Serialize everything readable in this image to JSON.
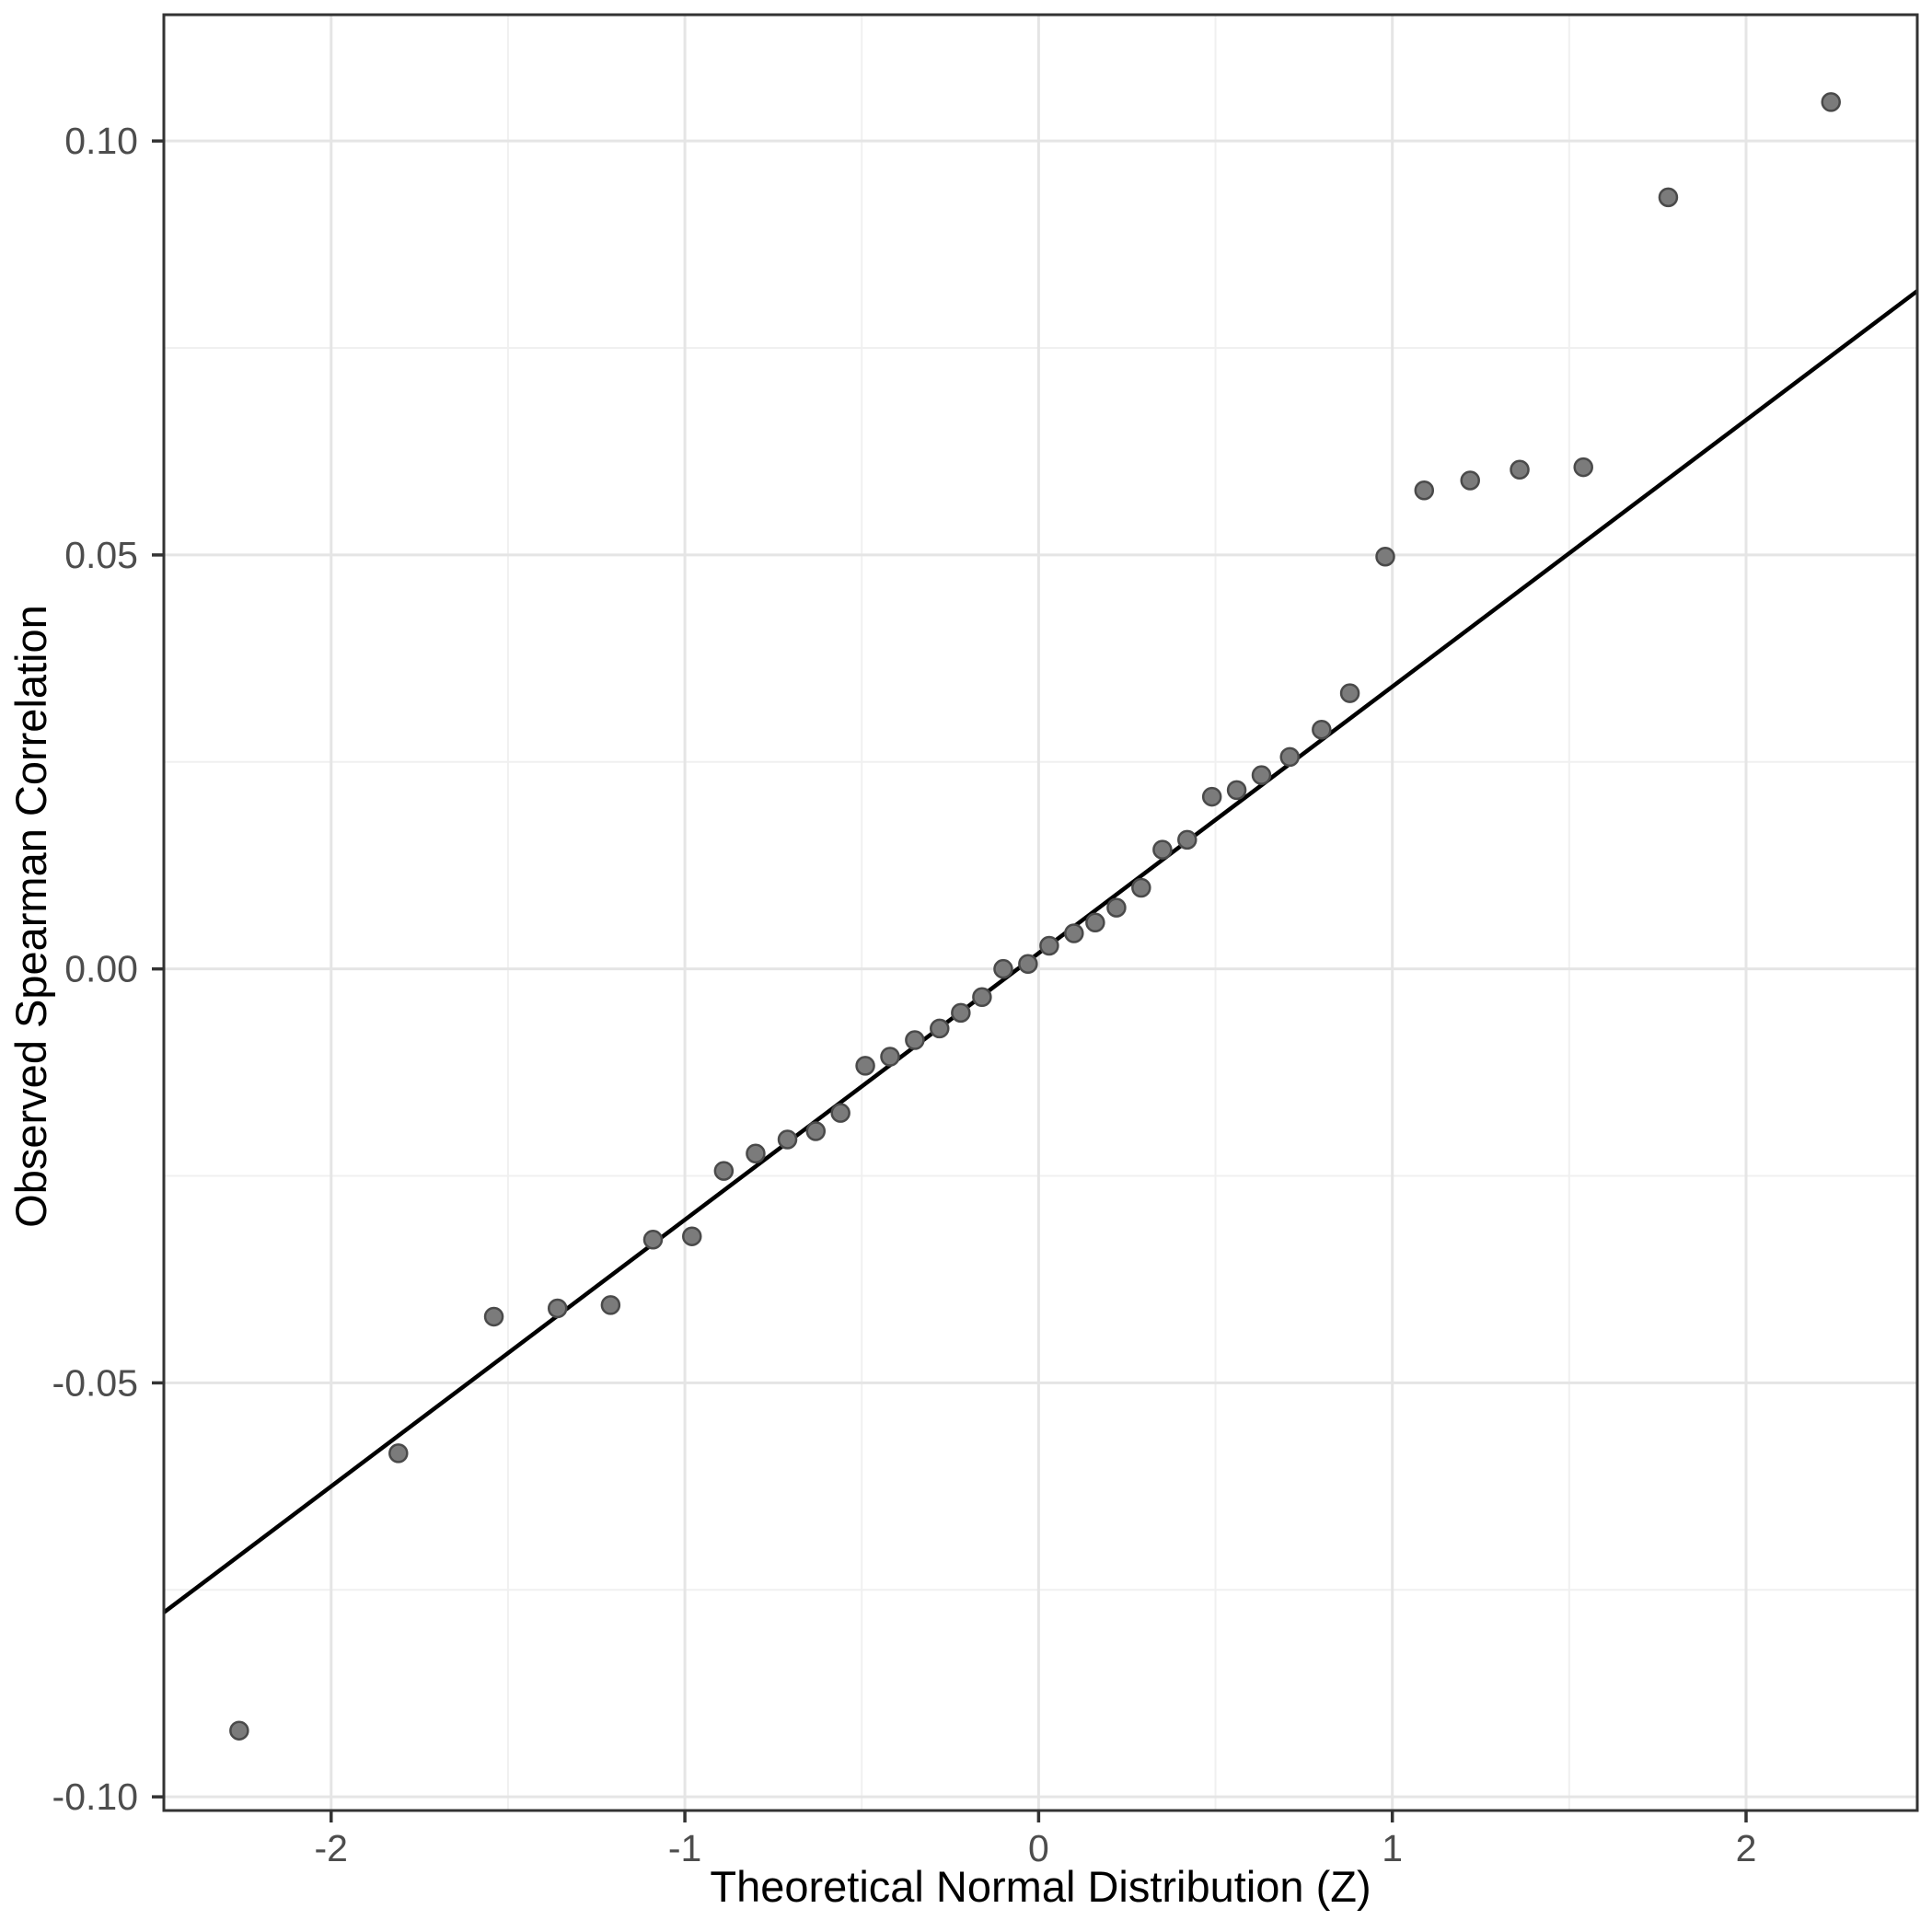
{
  "chart_data": {
    "type": "scatter",
    "title": "",
    "xlabel": "Theoretical Normal Distribution (Z)",
    "ylabel": "Observed Spearman Correlation",
    "x_axis": {
      "tick_values": [
        -2,
        -1,
        0,
        1,
        2
      ],
      "tick_labels": [
        "-2",
        "-1",
        "0",
        "1",
        "2"
      ],
      "minor_breaks": [
        -1.5,
        -0.5,
        0.5,
        1.5
      ],
      "limits": [
        -2.473,
        2.484
      ]
    },
    "y_axis": {
      "tick_values": [
        0.1,
        0.05,
        0.0,
        -0.05,
        -0.1
      ],
      "tick_labels": [
        "0.10",
        "0.05",
        "0.00",
        "-0.05",
        "-0.10"
      ],
      "minor_breaks": [
        0.075,
        0.025,
        -0.025,
        -0.075
      ],
      "limits": [
        -0.10165,
        0.11525
      ]
    },
    "grid": "major-and-minor",
    "legend_position": "none",
    "points": [
      [
        -2.26,
        -0.092
      ],
      [
        -1.81,
        -0.0585
      ],
      [
        -1.54,
        -0.042
      ],
      [
        -1.36,
        -0.041
      ],
      [
        -1.21,
        -0.0406
      ],
      [
        -1.09,
        -0.0327
      ],
      [
        -0.98,
        -0.0323
      ],
      [
        -0.89,
        -0.0244
      ],
      [
        -0.8,
        -0.0223
      ],
      [
        -0.71,
        -0.0206
      ],
      [
        -0.63,
        -0.0196
      ],
      [
        -0.56,
        -0.0174
      ],
      [
        -0.49,
        -0.0117
      ],
      [
        -0.42,
        -0.0106
      ],
      [
        -0.35,
        -0.0086
      ],
      [
        -0.28,
        -0.0072
      ],
      [
        -0.22,
        -0.0053
      ],
      [
        -0.16,
        -0.0034
      ],
      [
        -0.1,
        0.0
      ],
      [
        -0.03,
        0.0006
      ],
      [
        0.03,
        0.0028
      ],
      [
        0.1,
        0.0043
      ],
      [
        0.16,
        0.0056
      ],
      [
        0.22,
        0.0074
      ],
      [
        0.29,
        0.0098
      ],
      [
        0.35,
        0.0144
      ],
      [
        0.42,
        0.0156
      ],
      [
        0.49,
        0.0208
      ],
      [
        0.56,
        0.0216
      ],
      [
        0.63,
        0.0234
      ],
      [
        0.71,
        0.0256
      ],
      [
        0.8,
        0.0289
      ],
      [
        0.88,
        0.0333
      ],
      [
        0.98,
        0.0498
      ],
      [
        1.09,
        0.0578
      ],
      [
        1.22,
        0.059
      ],
      [
        1.36,
        0.0603
      ],
      [
        1.54,
        0.0606
      ],
      [
        1.78,
        0.0932
      ],
      [
        2.24,
        0.1047
      ]
    ],
    "reference_line": {
      "slope": 0.0322,
      "intercept": 0.0019
    },
    "colors": {
      "point_fill": "#7b7b7b",
      "point_stroke": "#4a4a4a",
      "line": "#000000",
      "grid_major": "#e5e5e5",
      "grid_minor": "#f0f0f0",
      "panel_border": "#333333",
      "tick_mark": "#333333",
      "tick_label": "#4d4d4d",
      "background": "#ffffff"
    }
  }
}
